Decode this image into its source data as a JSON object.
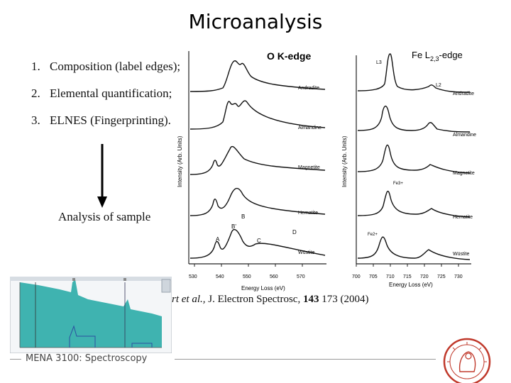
{
  "title": "Microanalysis",
  "list": [
    {
      "num": "1.",
      "text": "Composition (label edges);"
    },
    {
      "num": "2.",
      "text": "Elemental quantification;"
    },
    {
      "num": "3.",
      "text": "ELNES (Fingerprinting)."
    }
  ],
  "analysis_label": "Analysis of sample",
  "citation": {
    "author": "rt et al.,",
    "journal": " J. Electron Spectrosc, ",
    "volume": "143",
    "pages": " 173 (2004)"
  },
  "footer": "MENA 3100: Spectroscopy",
  "charts": {
    "left": {
      "title": "O K-edge",
      "ylabel": "Intensity (Arb. Units)",
      "xlabel": "Energy Loss (eV)",
      "ticks": [
        "530",
        "540",
        "550",
        "560",
        "570"
      ],
      "series": [
        "Andradite",
        "Almandine",
        "Magnetite",
        "Hematite",
        "Wüstite"
      ],
      "peaks": [
        "A",
        "B",
        "B'",
        "C",
        "D"
      ]
    },
    "right": {
      "title_main": "Fe L",
      "title_sub": "2,3",
      "title_end": "-edge",
      "ylabel": "Intensity (Arb. Units)",
      "xlabel": "Energy Loss (eV)",
      "ticks": [
        "700",
        "705",
        "710",
        "715",
        "720",
        "725",
        "730"
      ],
      "series": [
        "Andradite",
        "Almandine",
        "Magnetite",
        "Hematite",
        "Wüstite"
      ],
      "edge_labels": [
        "L3",
        "L2",
        "Fe3+",
        "Fe2+"
      ]
    }
  },
  "colors": {
    "spectrum": "#3fb3b0",
    "seal": "#c0392b",
    "curve": "#111111"
  }
}
